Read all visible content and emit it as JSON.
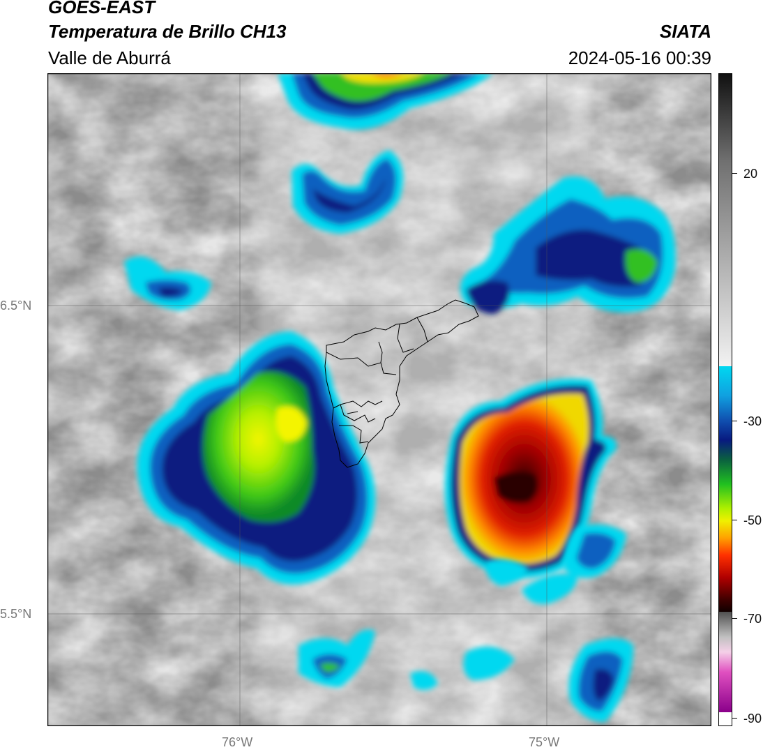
{
  "header": {
    "satellite": "GOES-EAST",
    "product": "Temperatura de Brillo CH13",
    "region": "Valle de Aburrá",
    "institution": "SIATA",
    "timestamp": "2024-05-16 00:39"
  },
  "map": {
    "lat_labels": [
      "6.5°N",
      "5.5°N"
    ],
    "lon_labels": [
      "76°W",
      "75°W"
    ]
  },
  "colorbar": {
    "ticks": [
      "20",
      "-30",
      "-50",
      "-70",
      "-90"
    ]
  },
  "colors": {
    "cyan": "#00d8f0",
    "blue": "#1060c0",
    "navy": "#081a80",
    "green": "#30c020",
    "yellow": "#f0f000",
    "orange": "#ff8000",
    "red": "#d00000",
    "darkred": "#500000",
    "magenta": "#e040c0"
  }
}
